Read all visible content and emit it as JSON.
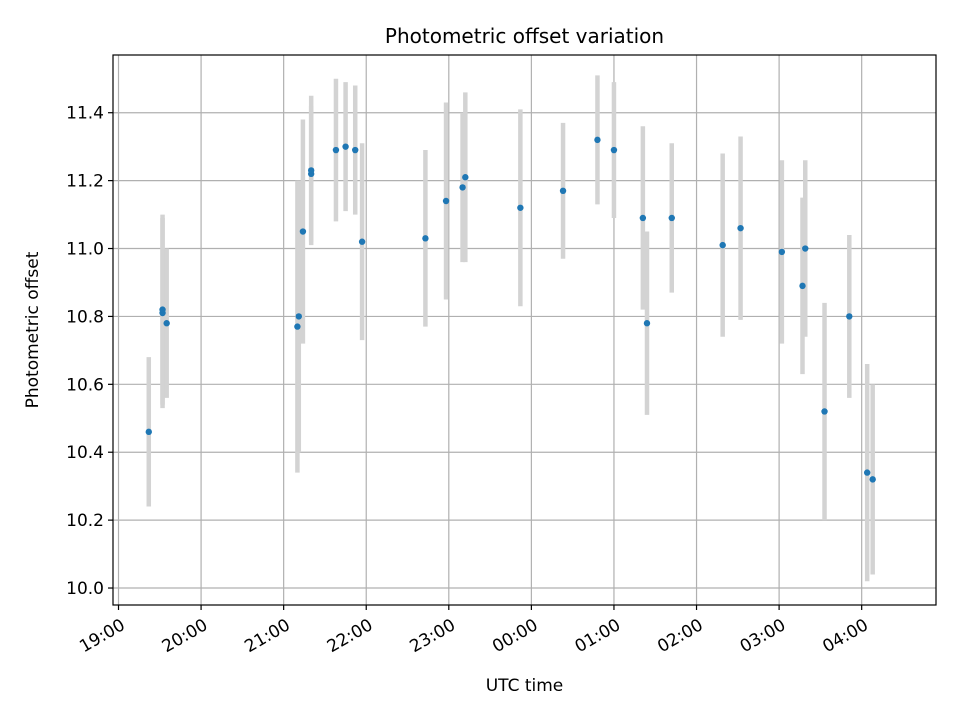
{
  "chart_data": {
    "type": "scatter",
    "title": "Photometric offset variation",
    "xlabel": "UTC time",
    "ylabel": "Photometric offset",
    "x_tick_labels": [
      "19:00",
      "20:00",
      "21:00",
      "22:00",
      "23:00",
      "00:00",
      "01:00",
      "02:00",
      "03:00",
      "04:00"
    ],
    "y_tick_labels": [
      "10.0",
      "10.2",
      "10.4",
      "10.6",
      "10.8",
      "11.0",
      "11.2",
      "11.4"
    ],
    "y_ticks": [
      10.0,
      10.2,
      10.4,
      10.6,
      10.8,
      11.0,
      11.2,
      11.4
    ],
    "ylim": [
      9.95,
      11.57
    ],
    "xlim": [
      "18:56",
      "04:54"
    ],
    "grid": true,
    "marker_color": "#1f77b4",
    "errorbar_color": "#d3d3d3",
    "points": [
      {
        "time": "19:22",
        "y": 10.46,
        "err": 0.22
      },
      {
        "time": "19:32",
        "y": 10.81,
        "err": 0.28
      },
      {
        "time": "19:32",
        "y": 10.82,
        "err": 0.28
      },
      {
        "time": "19:35",
        "y": 10.78,
        "err": 0.22
      },
      {
        "time": "21:10",
        "y": 10.77,
        "err": 0.43
      },
      {
        "time": "21:11",
        "y": 10.8,
        "err": 0.4
      },
      {
        "time": "21:14",
        "y": 11.05,
        "err": 0.33
      },
      {
        "time": "21:20",
        "y": 11.22,
        "err": 0.2
      },
      {
        "time": "21:20",
        "y": 11.23,
        "err": 0.22
      },
      {
        "time": "21:38",
        "y": 11.29,
        "err": 0.21
      },
      {
        "time": "21:45",
        "y": 11.3,
        "err": 0.19
      },
      {
        "time": "21:52",
        "y": 11.29,
        "err": 0.19
      },
      {
        "time": "21:57",
        "y": 11.02,
        "err": 0.29
      },
      {
        "time": "22:43",
        "y": 11.03,
        "err": 0.26
      },
      {
        "time": "22:58",
        "y": 11.14,
        "err": 0.29
      },
      {
        "time": "23:10",
        "y": 11.18,
        "err": 0.22
      },
      {
        "time": "23:12",
        "y": 11.21,
        "err": 0.25
      },
      {
        "time": "23:52",
        "y": 11.12,
        "err": 0.29
      },
      {
        "time": "00:23",
        "y": 11.17,
        "err": 0.2
      },
      {
        "time": "00:48",
        "y": 11.32,
        "err": 0.19
      },
      {
        "time": "01:00",
        "y": 11.29,
        "err": 0.2
      },
      {
        "time": "01:21",
        "y": 11.09,
        "err": 0.27
      },
      {
        "time": "01:24",
        "y": 10.78,
        "err": 0.27
      },
      {
        "time": "01:42",
        "y": 11.09,
        "err": 0.22
      },
      {
        "time": "02:19",
        "y": 11.01,
        "err": 0.27
      },
      {
        "time": "02:32",
        "y": 11.06,
        "err": 0.27
      },
      {
        "time": "03:02",
        "y": 10.99,
        "err": 0.27
      },
      {
        "time": "03:17",
        "y": 10.89,
        "err": 0.26
      },
      {
        "time": "03:19",
        "y": 11.0,
        "err": 0.26
      },
      {
        "time": "03:33",
        "y": 10.52,
        "err": 0.32
      },
      {
        "time": "03:51",
        "y": 10.8,
        "err": 0.24
      },
      {
        "time": "04:04",
        "y": 10.34,
        "err": 0.32
      },
      {
        "time": "04:08",
        "y": 10.32,
        "err": 0.28
      }
    ]
  }
}
